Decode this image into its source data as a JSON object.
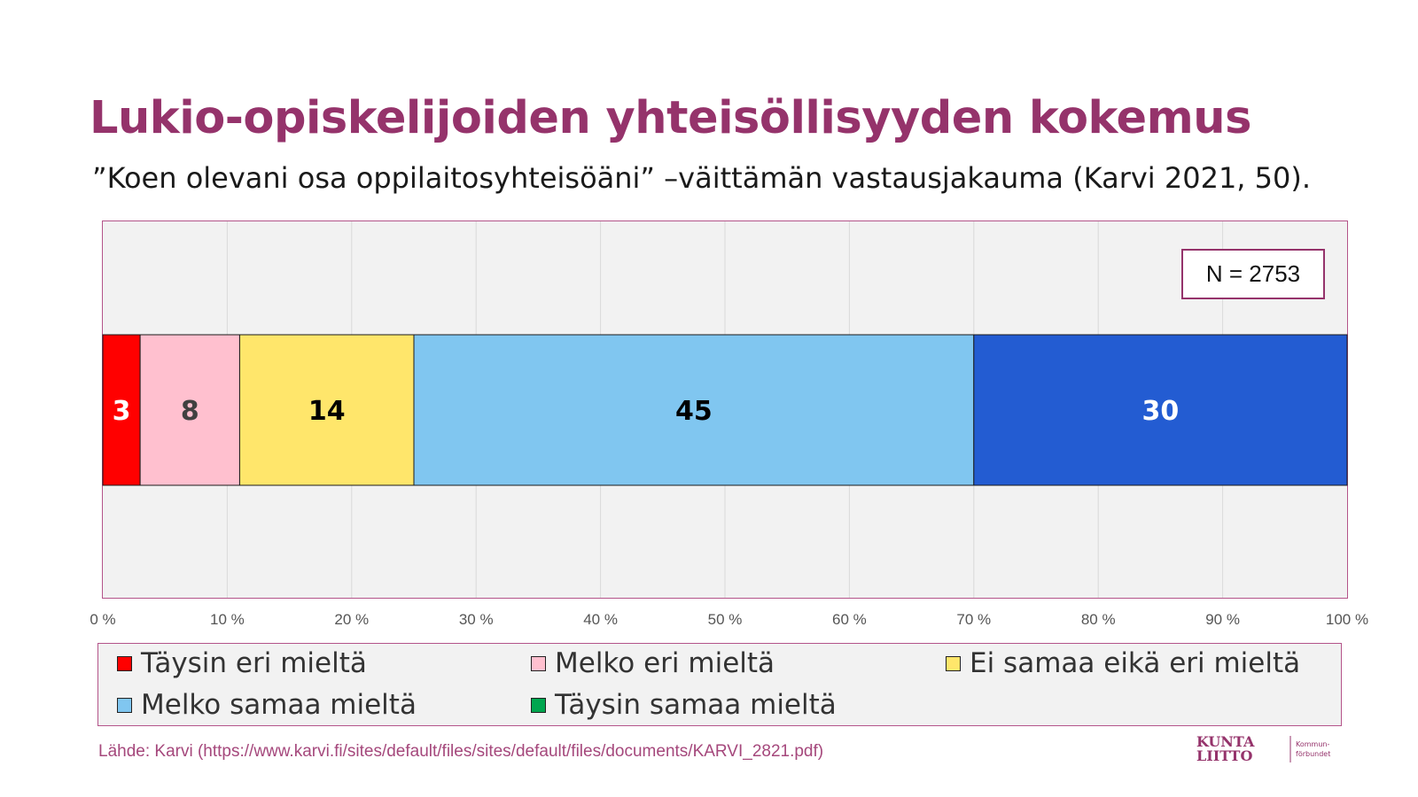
{
  "title": "Lukio-opiskelijoiden yhteisöllisyyden kokemus",
  "subtitle": "”Koen olevani osa oppilaitosyhteisöäni” –väittämän vastausjakauma (Karvi 2021, 50).",
  "n_label": "N = 2753",
  "chart_data": {
    "type": "bar",
    "orientation": "horizontal",
    "stacked": true,
    "title": "Lukio-opiskelijoiden yhteisöllisyyden kokemus",
    "categories": [
      ""
    ],
    "xlim": [
      0,
      100
    ],
    "x_ticks": [
      "0 %",
      "10 %",
      "20 %",
      "30 %",
      "40 %",
      "50 %",
      "60 %",
      "70 %",
      "80 %",
      "90 %",
      "100 %"
    ],
    "grid": true,
    "series": [
      {
        "name": "Täysin eri mieltä",
        "values": [
          3
        ],
        "color": "#ff0000",
        "label_color": "#ffffff"
      },
      {
        "name": "Melko eri mieltä",
        "values": [
          8
        ],
        "color": "#ffc0cf",
        "label_color": "#404040"
      },
      {
        "name": "Ei samaa eikä eri mieltä",
        "values": [
          14
        ],
        "color": "#ffe66b",
        "label_color": "#000000"
      },
      {
        "name": "Melko samaa mieltä",
        "values": [
          45
        ],
        "color": "#80c6f0",
        "label_color": "#000000"
      },
      {
        "name": "Täysin samaa mieltä",
        "values": [
          30
        ],
        "color": "#235cd2",
        "label_color": "#ffffff"
      }
    ],
    "legend_swatch_colors": [
      "#ff0000",
      "#ffc0cf",
      "#ffe66b",
      "#80c6f0",
      "#00a64f"
    ],
    "legend_position": "bottom"
  },
  "source": "Lähde: Karvi (https://www.karvi.fi/sites/default/files/sites/default/files/documents/KARVI_2821.pdf)",
  "logo": {
    "line1": "KUNTA",
    "line2": "LIITTO",
    "sub1": "Kommun-",
    "sub2": "förbundet"
  },
  "colors": {
    "brand": "#95336b",
    "frame": "#b4548a",
    "plot_bg": "#f2f2f2"
  }
}
